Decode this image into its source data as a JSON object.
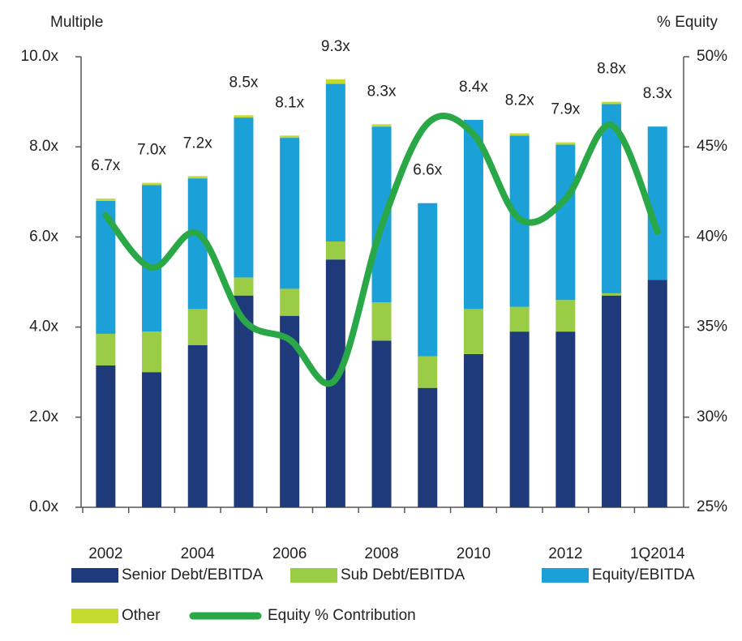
{
  "chart_data": {
    "type": "stacked_bar_line",
    "y_axis_label": "Multiple",
    "y2_axis_label": "% Equity",
    "categories": [
      "2002",
      null,
      "2004",
      null,
      "2006",
      null,
      "2008",
      null,
      "2010",
      null,
      "2012",
      null,
      "1Q2014"
    ],
    "series": [
      {
        "name": "Senior Debt/EBITDA",
        "color": "#1f3a7a",
        "values": [
          3.15,
          3.0,
          3.6,
          4.7,
          4.25,
          5.5,
          3.7,
          2.65,
          3.4,
          3.9,
          3.9,
          4.7,
          5.05
        ]
      },
      {
        "name": "Sub Debt/EBITDA",
        "color": "#9acd45",
        "values": [
          0.7,
          0.9,
          0.8,
          0.4,
          0.6,
          0.4,
          0.85,
          0.7,
          1.0,
          0.55,
          0.7,
          0.05,
          0
        ]
      },
      {
        "name": "Equity/EBITDA",
        "color": "#1ba1d8",
        "values": [
          2.95,
          3.25,
          2.9,
          3.55,
          3.35,
          3.5,
          3.9,
          3.4,
          4.2,
          3.8,
          3.45,
          4.2,
          3.4
        ]
      },
      {
        "name": "Other",
        "color": "#c6d92e",
        "values": [
          0.05,
          0.05,
          0.05,
          0.05,
          0.05,
          0.1,
          0.05,
          0,
          0,
          0.05,
          0.05,
          0.05,
          0
        ]
      },
      {
        "name": "Equity % Contribution",
        "color": "#2aa847",
        "axis": "y2",
        "values": [
          41.2,
          38.3,
          40.2,
          35.4,
          34.3,
          32.1,
          40.6,
          46.3,
          45.7,
          41.0,
          42.1,
          46.2,
          40.3
        ]
      }
    ],
    "totals": {
      "values": [
        6.7,
        7.0,
        7.2,
        8.5,
        8.1,
        9.3,
        8.3,
        6.6,
        8.4,
        8.2,
        7.9,
        8.8,
        8.3
      ],
      "value_labels": [
        "6.7x",
        "7.0x",
        "7.2x",
        "8.5x",
        "8.1x",
        "9.3x",
        "8.3x",
        "6.6x",
        "8.4x",
        "8.2x",
        "7.9x",
        "8.8x",
        "8.3x"
      ]
    },
    "ylim": [
      0,
      10
    ],
    "yticks": [
      {
        "value": 0,
        "label": "0.0x"
      },
      {
        "value": 2,
        "label": "2.0x"
      },
      {
        "value": 4,
        "label": "4.0x"
      },
      {
        "value": 6,
        "label": "6.0x"
      },
      {
        "value": 8,
        "label": "8.0x"
      },
      {
        "value": 10,
        "label": "10.0x"
      }
    ],
    "y2lim": [
      25,
      50
    ],
    "y2ticks": [
      {
        "value": 25,
        "label": "25%"
      },
      {
        "value": 30,
        "label": "30%"
      },
      {
        "value": 35,
        "label": "35%"
      },
      {
        "value": 40,
        "label": "40%"
      },
      {
        "value": 45,
        "label": "45%"
      },
      {
        "value": 50,
        "label": "50%"
      }
    ],
    "legend": "bottom",
    "grid": false
  }
}
